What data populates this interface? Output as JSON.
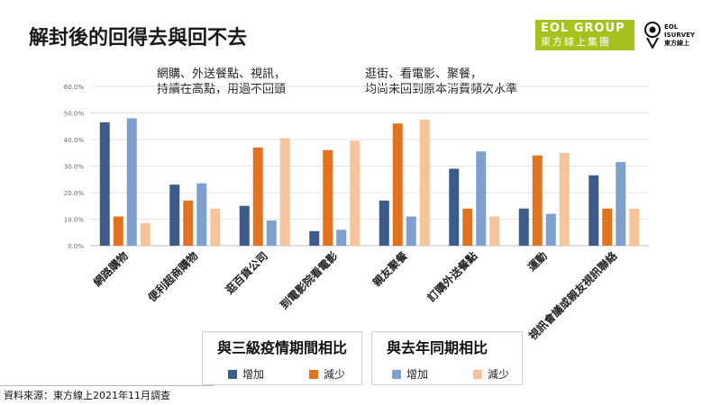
{
  "title": "解封後的回得去與回不去",
  "logos": {
    "eol_line1": "EOL GROUP",
    "eol_line2": "東方線上集團",
    "survey_line1": "EOL",
    "survey_line2": "ISURVEY",
    "survey_line3": "東方線上"
  },
  "annotations": {
    "left_line1": "網購、外送餐點、視訊，",
    "left_line2": "持續在高點，用過不回頭",
    "right_line1": "逛街、看電影、聚餐，",
    "right_line2": "均尚未回到原本消費頻次水準"
  },
  "legend": {
    "group1_title": "與三級疫情期間相比",
    "group2_title": "與去年同期相比",
    "increase": "增加",
    "decrease": "減少"
  },
  "source": "資料來源：東方線上2021年11月調查",
  "colors": {
    "g1_increase": "#3c5a8a",
    "g1_decrease": "#e2731e",
    "g2_increase": "#7f9fcf",
    "g2_decrease": "#f6c49a",
    "logo_green": "#a6c21f"
  },
  "chart_data": {
    "type": "bar",
    "categories": [
      "網路購物",
      "便利超商購物",
      "逛百貨公司",
      "到電影院看電影",
      "親友聚餐",
      "訂購外送餐點",
      "運動",
      "視訊會議或親友視訊聯絡"
    ],
    "series": [
      {
        "name": "與三級疫情期間相比 增加",
        "values": [
          46.5,
          23,
          15,
          5.5,
          17,
          29,
          14,
          26.5
        ]
      },
      {
        "name": "與三級疫情期間相比 減少",
        "values": [
          11,
          17,
          37,
          36,
          46,
          14,
          34,
          14
        ]
      },
      {
        "name": "與去年同期相比 增加",
        "values": [
          48,
          23.5,
          9.5,
          6,
          11,
          35.5,
          12,
          31.5
        ]
      },
      {
        "name": "與去年同期相比 減少",
        "values": [
          8.5,
          14,
          40.5,
          39.5,
          47.5,
          11,
          35,
          14
        ]
      }
    ],
    "yticks": [
      "0.0%",
      "10.0%",
      "20.0%",
      "30.0%",
      "40.0%",
      "50.0%",
      "60.0%"
    ],
    "ylim": [
      0,
      60
    ],
    "grid": true
  }
}
